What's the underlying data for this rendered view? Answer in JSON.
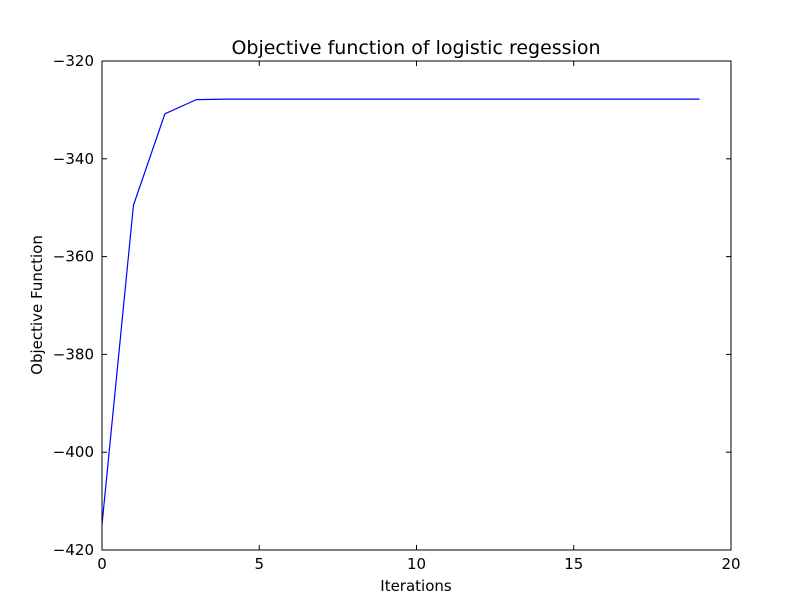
{
  "chart_data": {
    "type": "line",
    "title": "Objective function of logistic regession",
    "xlabel": "Iterations",
    "ylabel": "Objective Function",
    "xlim": [
      0,
      20
    ],
    "ylim": [
      -420,
      -320
    ],
    "xticks": [
      0,
      5,
      10,
      15,
      20
    ],
    "yticks": [
      -420,
      -400,
      -380,
      -360,
      -340,
      -320
    ],
    "xtick_labels": [
      "0",
      "5",
      "10",
      "15",
      "20"
    ],
    "ytick_labels": [
      "−420",
      "−400",
      "−380",
      "−360",
      "−340",
      "−320"
    ],
    "grid": false,
    "legend": "none",
    "series": [
      {
        "color": "#0000ff",
        "x": [
          0,
          1,
          2,
          3,
          4,
          5,
          6,
          7,
          8,
          9,
          10,
          11,
          12,
          13,
          14,
          15,
          16,
          17,
          18,
          19
        ],
        "y": [
          -414.8,
          -349.5,
          -330.8,
          -327.9,
          -327.8,
          -327.8,
          -327.8,
          -327.8,
          -327.8,
          -327.8,
          -327.8,
          -327.8,
          -327.8,
          -327.8,
          -327.8,
          -327.8,
          -327.8,
          -327.8,
          -327.8,
          -327.8
        ]
      }
    ]
  }
}
